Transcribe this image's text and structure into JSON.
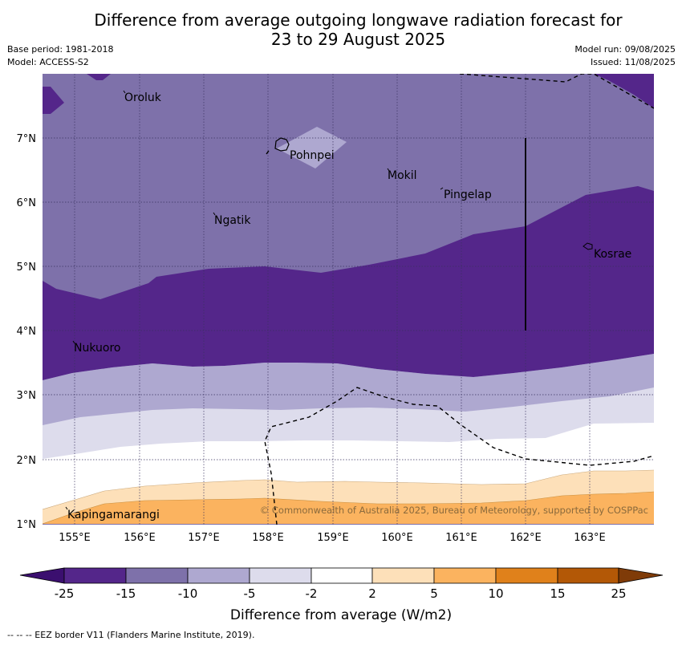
{
  "title_line1": "Difference from average outgoing longwave radiation forecast for",
  "title_line2": "23 to 29 August 2025",
  "base_period": "Base period: 1981-2018",
  "model": "Model: ACCESS-S2",
  "model_run": "Model run: 09/08/2025",
  "issued": "Issued: 11/08/2025",
  "places": {
    "oroluk": "Oroluk",
    "pohnpei": "Pohnpei",
    "mokil": "Mokil",
    "pingelap": "Pingelap",
    "ngatik": "Ngatik",
    "kosrae": "Kosrae",
    "nukuoro": "Nukuoro",
    "kapingamarangi": "Kapingamarangi"
  },
  "lat_ticks": [
    "7°N",
    "6°N",
    "5°N",
    "4°N",
    "3°N",
    "2°N",
    "1°N"
  ],
  "lon_ticks": [
    "155°E",
    "156°E",
    "157°E",
    "158°E",
    "159°E",
    "160°E",
    "161°E",
    "162°E",
    "163°E"
  ],
  "copyright": "© Commonwealth of Australia 2025, Bureau of Meteorology, supported by COSPPac",
  "colorbar": {
    "labels": [
      "-25",
      "-15",
      "-10",
      "-5",
      "-2",
      "2",
      "5",
      "10",
      "15",
      "25"
    ],
    "colors": [
      "#3b0f6f",
      "#54268a",
      "#7e71aa",
      "#aea8d0",
      "#dddcec",
      "#ffffff",
      "#fde0b9",
      "#fbb35f",
      "#e0811b",
      "#b35806",
      "#7f3b08"
    ],
    "title": "Difference from average (W/m2)"
  },
  "footnote": "--  --  -- EEZ border V11 (Flanders Marine Institute, 2019)."
}
